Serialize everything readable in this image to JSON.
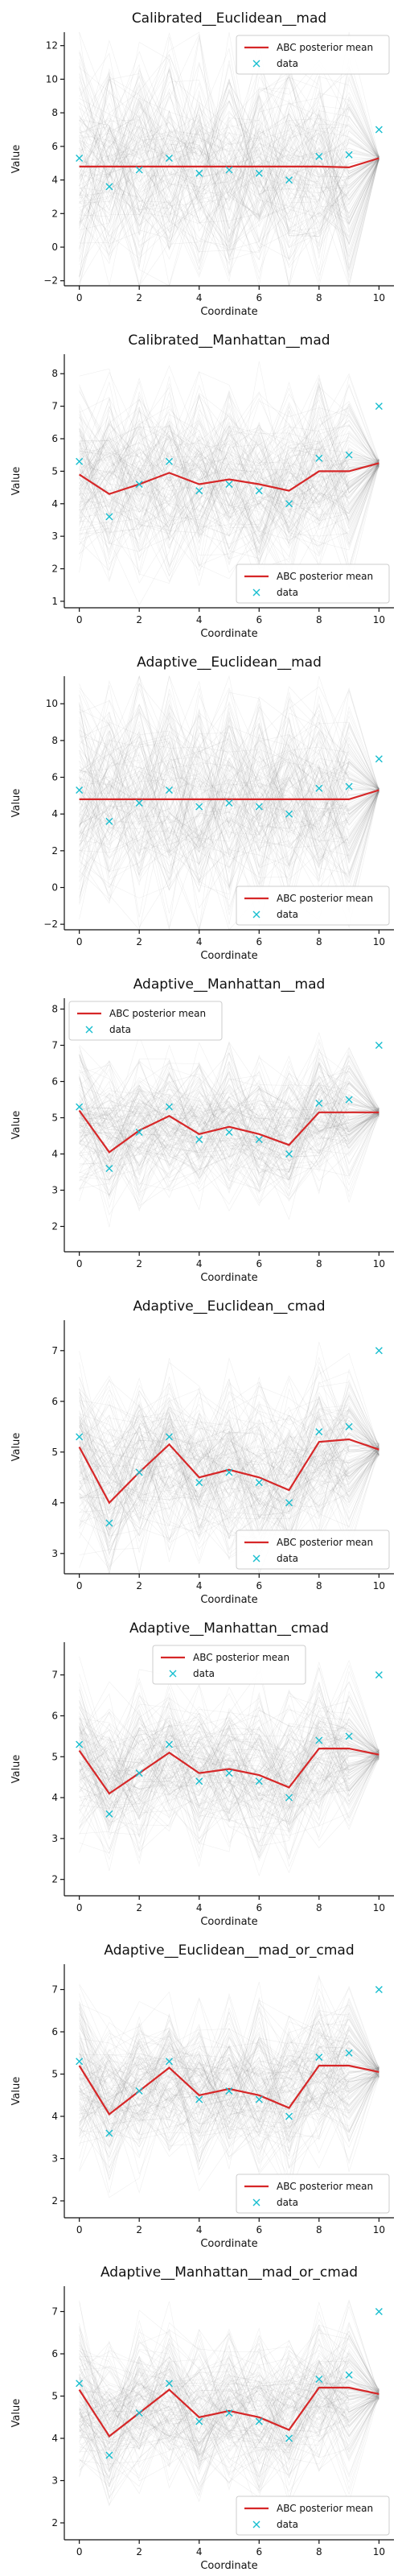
{
  "chart_data": [
    {
      "type": "line",
      "title": "Calibrated__Euclidean__mad",
      "xlabel": "Coordinate",
      "ylabel": "Value",
      "xlim": [
        0,
        10
      ],
      "ylim": [
        -2.3,
        12.8
      ],
      "yticks": [
        -2,
        0,
        2,
        4,
        6,
        8,
        10,
        12
      ],
      "xticks": [
        0,
        2,
        4,
        6,
        8,
        10
      ],
      "x": [
        0,
        1,
        2,
        3,
        4,
        5,
        6,
        7,
        8,
        9,
        10
      ],
      "series": [
        {
          "name": "ABC posterior mean",
          "kind": "line",
          "color": "#d62728",
          "values": [
            4.8,
            4.8,
            4.8,
            4.8,
            4.8,
            4.8,
            4.8,
            4.8,
            4.8,
            4.75,
            5.3
          ]
        },
        {
          "name": "data",
          "kind": "marker",
          "color": "#17becf",
          "values": [
            5.3,
            3.6,
            4.6,
            5.3,
            4.4,
            4.6,
            4.4,
            4.0,
            5.4,
            5.5,
            7.0
          ]
        }
      ],
      "band": {
        "center": 4.8,
        "spread": 8.5,
        "end": 5.3
      },
      "legend": "top-right"
    },
    {
      "type": "line",
      "title": "Calibrated__Manhattan__mad",
      "xlabel": "Coordinate",
      "ylabel": "Value",
      "xlim": [
        0,
        10
      ],
      "ylim": [
        0.8,
        8.6
      ],
      "yticks": [
        1,
        2,
        3,
        4,
        5,
        6,
        7,
        8
      ],
      "xticks": [
        0,
        2,
        4,
        6,
        8,
        10
      ],
      "x": [
        0,
        1,
        2,
        3,
        4,
        5,
        6,
        7,
        8,
        9,
        10
      ],
      "series": [
        {
          "name": "ABC posterior mean",
          "kind": "line",
          "color": "#d62728",
          "values": [
            4.9,
            4.3,
            4.6,
            4.95,
            4.6,
            4.75,
            4.6,
            4.4,
            5.0,
            5.0,
            5.25
          ]
        },
        {
          "name": "data",
          "kind": "marker",
          "color": "#17becf",
          "values": [
            5.3,
            3.6,
            4.6,
            5.3,
            4.4,
            4.6,
            4.4,
            4.0,
            5.4,
            5.5,
            7.0
          ]
        }
      ],
      "band": {
        "center": 4.8,
        "spread": 3.6,
        "end": 5.25
      },
      "legend": "bottom-right"
    },
    {
      "type": "line",
      "title": "Adaptive__Euclidean__mad",
      "xlabel": "Coordinate",
      "ylabel": "Value",
      "xlim": [
        0,
        10
      ],
      "ylim": [
        -2.3,
        11.5
      ],
      "yticks": [
        -2,
        0,
        2,
        4,
        6,
        8,
        10
      ],
      "xticks": [
        0,
        2,
        4,
        6,
        8,
        10
      ],
      "x": [
        0,
        1,
        2,
        3,
        4,
        5,
        6,
        7,
        8,
        9,
        10
      ],
      "series": [
        {
          "name": "ABC posterior mean",
          "kind": "line",
          "color": "#d62728",
          "values": [
            4.8,
            4.8,
            4.8,
            4.8,
            4.8,
            4.8,
            4.8,
            4.8,
            4.8,
            4.8,
            5.3
          ]
        },
        {
          "name": "data",
          "kind": "marker",
          "color": "#17becf",
          "values": [
            5.3,
            3.6,
            4.6,
            5.3,
            4.4,
            4.6,
            4.4,
            4.0,
            5.4,
            5.5,
            7.0
          ]
        }
      ],
      "band": {
        "center": 4.8,
        "spread": 7.5,
        "end": 5.3
      },
      "legend": "bottom-right"
    },
    {
      "type": "line",
      "title": "Adaptive__Manhattan__mad",
      "xlabel": "Coordinate",
      "ylabel": "Value",
      "xlim": [
        0,
        10
      ],
      "ylim": [
        1.3,
        8.3
      ],
      "yticks": [
        2,
        3,
        4,
        5,
        6,
        7,
        8
      ],
      "xticks": [
        0,
        2,
        4,
        6,
        8,
        10
      ],
      "x": [
        0,
        1,
        2,
        3,
        4,
        5,
        6,
        7,
        8,
        9,
        10
      ],
      "series": [
        {
          "name": "ABC posterior mean",
          "kind": "line",
          "color": "#d62728",
          "values": [
            5.2,
            4.05,
            4.65,
            5.05,
            4.55,
            4.75,
            4.55,
            4.25,
            5.15,
            5.15,
            5.15
          ]
        },
        {
          "name": "data",
          "kind": "marker",
          "color": "#17becf",
          "values": [
            5.3,
            3.6,
            4.6,
            5.3,
            4.4,
            4.6,
            4.4,
            4.0,
            5.4,
            5.5,
            7.0
          ]
        }
      ],
      "band": {
        "center": 4.7,
        "spread": 2.5,
        "end": 5.15
      },
      "legend": "top-left"
    },
    {
      "type": "line",
      "title": "Adaptive__Euclidean__cmad",
      "xlabel": "Coordinate",
      "ylabel": "Value",
      "xlim": [
        0,
        10
      ],
      "ylim": [
        2.6,
        7.6
      ],
      "yticks": [
        3,
        4,
        5,
        6,
        7
      ],
      "xticks": [
        0,
        2,
        4,
        6,
        8,
        10
      ],
      "x": [
        0,
        1,
        2,
        3,
        4,
        5,
        6,
        7,
        8,
        9,
        10
      ],
      "series": [
        {
          "name": "ABC posterior mean",
          "kind": "line",
          "color": "#d62728",
          "values": [
            5.1,
            4.0,
            4.6,
            5.15,
            4.5,
            4.65,
            4.5,
            4.25,
            5.2,
            5.25,
            5.05
          ]
        },
        {
          "name": "data",
          "kind": "marker",
          "color": "#17becf",
          "values": [
            5.3,
            3.6,
            4.6,
            5.3,
            4.4,
            4.6,
            4.4,
            4.0,
            5.4,
            5.5,
            7.0
          ]
        }
      ],
      "band": {
        "center": 4.7,
        "spread": 2.2,
        "end": 5.05
      },
      "legend": "bottom-right"
    },
    {
      "type": "line",
      "title": "Adaptive__Manhattan__cmad",
      "xlabel": "Coordinate",
      "ylabel": "Value",
      "xlim": [
        0,
        10
      ],
      "ylim": [
        1.6,
        7.8
      ],
      "yticks": [
        2,
        3,
        4,
        5,
        6,
        7
      ],
      "xticks": [
        0,
        2,
        4,
        6,
        8,
        10
      ],
      "x": [
        0,
        1,
        2,
        3,
        4,
        5,
        6,
        7,
        8,
        9,
        10
      ],
      "series": [
        {
          "name": "ABC posterior mean",
          "kind": "line",
          "color": "#d62728",
          "values": [
            5.15,
            4.1,
            4.6,
            5.1,
            4.6,
            4.7,
            4.55,
            4.25,
            5.2,
            5.2,
            5.05
          ]
        },
        {
          "name": "data",
          "kind": "marker",
          "color": "#17becf",
          "values": [
            5.3,
            3.6,
            4.6,
            5.3,
            4.4,
            4.6,
            4.4,
            4.0,
            5.4,
            5.5,
            7.0
          ]
        }
      ],
      "band": {
        "center": 4.7,
        "spread": 2.5,
        "end": 5.05
      },
      "legend": "top-center"
    },
    {
      "type": "line",
      "title": "Adaptive__Euclidean__mad_or_cmad",
      "xlabel": "Coordinate",
      "ylabel": "Value",
      "xlim": [
        0,
        10
      ],
      "ylim": [
        1.6,
        7.6
      ],
      "yticks": [
        2,
        3,
        4,
        5,
        6,
        7
      ],
      "xticks": [
        0,
        2,
        4,
        6,
        8,
        10
      ],
      "x": [
        0,
        1,
        2,
        3,
        4,
        5,
        6,
        7,
        8,
        9,
        10
      ],
      "series": [
        {
          "name": "ABC posterior mean",
          "kind": "line",
          "color": "#d62728",
          "values": [
            5.2,
            4.05,
            4.6,
            5.15,
            4.5,
            4.65,
            4.5,
            4.2,
            5.2,
            5.2,
            5.05
          ]
        },
        {
          "name": "data",
          "kind": "marker",
          "color": "#17becf",
          "values": [
            5.3,
            3.6,
            4.6,
            5.3,
            4.4,
            4.6,
            4.4,
            4.0,
            5.4,
            5.5,
            7.0
          ]
        }
      ],
      "band": {
        "center": 4.7,
        "spread": 2.4,
        "end": 5.05
      },
      "legend": "bottom-right"
    },
    {
      "type": "line",
      "title": "Adaptive__Manhattan__mad_or_cmad",
      "xlabel": "Coordinate",
      "ylabel": "Value",
      "xlim": [
        0,
        10
      ],
      "ylim": [
        1.6,
        7.6
      ],
      "yticks": [
        2,
        3,
        4,
        5,
        6,
        7
      ],
      "xticks": [
        0,
        2,
        4,
        6,
        8,
        10
      ],
      "x": [
        0,
        1,
        2,
        3,
        4,
        5,
        6,
        7,
        8,
        9,
        10
      ],
      "series": [
        {
          "name": "ABC posterior mean",
          "kind": "line",
          "color": "#d62728",
          "values": [
            5.15,
            4.05,
            4.6,
            5.15,
            4.5,
            4.65,
            4.5,
            4.2,
            5.2,
            5.2,
            5.05
          ]
        },
        {
          "name": "data",
          "kind": "marker",
          "color": "#17becf",
          "values": [
            5.3,
            3.6,
            4.6,
            5.3,
            4.4,
            4.6,
            4.4,
            4.0,
            5.4,
            5.5,
            7.0
          ]
        }
      ],
      "band": {
        "center": 4.7,
        "spread": 2.4,
        "end": 5.05
      },
      "legend": "bottom-right"
    }
  ]
}
